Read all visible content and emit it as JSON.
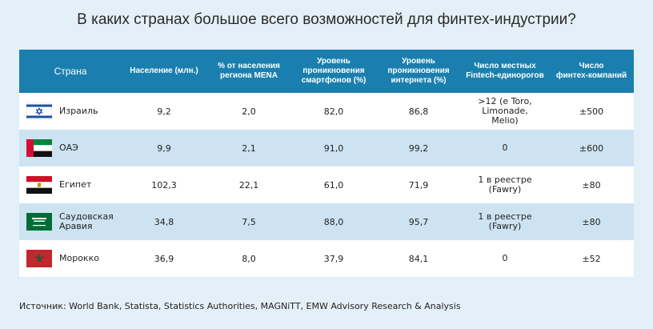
{
  "title": "В каких странах большое всего возможностей для финтех-индустрии?",
  "headers": [
    "Страна",
    "Население (млн.)",
    "% от населения\nрегиона MENA",
    "Уровень\nпроникновения\nсмартфонов (%)",
    "Уровень\nпроникновения\nинтернета (%)",
    "Число местных\nFintech-единорогов",
    "Число\nфинтех-компаний"
  ],
  "rows": [
    {
      "flag_icon": "israel-flag-icon",
      "country": "Израиль",
      "population": "9,2",
      "mena_share": "2,0",
      "smartphone": "82,0",
      "internet": "86,8",
      "unicorns": ">12 (e Toro,\nLimonade,\nMelio)",
      "companies": "±500"
    },
    {
      "flag_icon": "uae-flag-icon",
      "country": "ОАЭ",
      "population": "9,9",
      "mena_share": "2,1",
      "smartphone": "91,0",
      "internet": "99,2",
      "unicorns": "0",
      "companies": "±600"
    },
    {
      "flag_icon": "egypt-flag-icon",
      "country": "Египет",
      "population": "102,3",
      "mena_share": "22,1",
      "smartphone": "61,0",
      "internet": "71,9",
      "unicorns": "1 в реестре\n(Fawry)",
      "companies": "±80"
    },
    {
      "flag_icon": "saudi-arabia-flag-icon",
      "country": "Саудовская\nАравия",
      "population": "34,8",
      "mena_share": "7,5",
      "smartphone": "88,0",
      "internet": "95,7",
      "unicorns": "1 в реестре\n(Fawry)",
      "companies": "±80"
    },
    {
      "flag_icon": "morocco-flag-icon",
      "country": "Морокко",
      "population": "36,9",
      "mena_share": "8,0",
      "smartphone": "37,9",
      "internet": "84,1",
      "unicorns": "0",
      "companies": "±52"
    }
  ],
  "source": "Источник: World Bank, Statista, Statistics Authorities, MAGNiTT, EMW Advisory Research & Analysis",
  "colors": {
    "header_bg": "#1a7fae",
    "stripe": "#cde3f1",
    "page_bg": "#e4f0f7"
  }
}
